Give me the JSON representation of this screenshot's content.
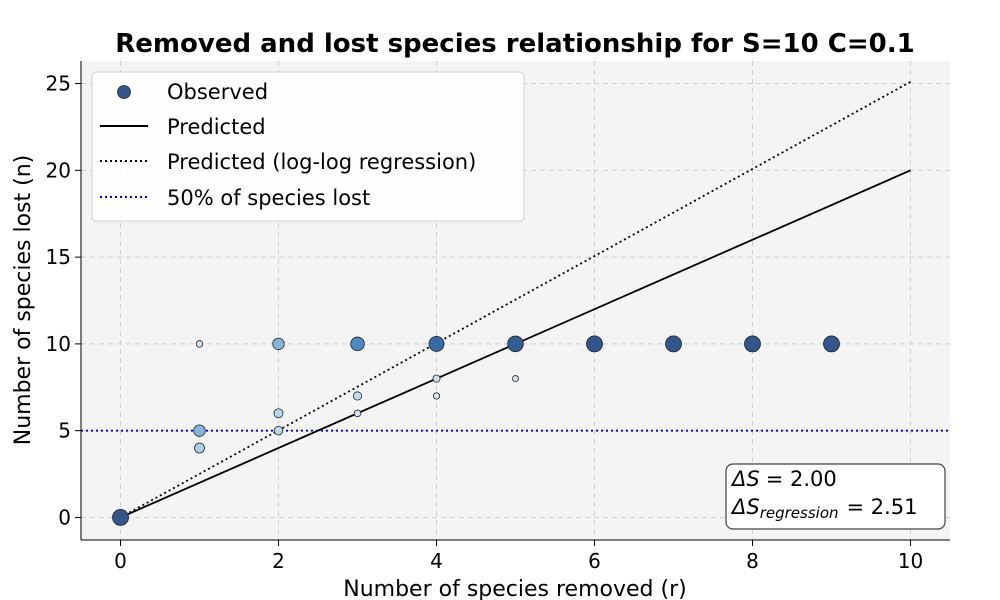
{
  "chart_data": {
    "type": "scatter",
    "title": "Removed and lost species relationship for S=10 C=0.1",
    "xlabel": "Number of species removed (r)",
    "ylabel": "Number of species lost (n)",
    "xlim": [
      -0.5,
      10.5
    ],
    "ylim": [
      -1.3,
      26.3
    ],
    "xticks": [
      0,
      2,
      4,
      6,
      8,
      10
    ],
    "yticks": [
      0,
      5,
      10,
      15,
      20,
      25
    ],
    "grid": true,
    "legend_position": "top-left",
    "legend": {
      "observed": "Observed",
      "predicted": "Predicted",
      "predicted_log": "Predicted (log-log regression)",
      "half_lost": "50% of species lost"
    },
    "annotation": {
      "delta_s_symbol": "ΔS",
      "delta_s_value": "= 2.00",
      "delta_s_reg_sub": "regression",
      "delta_s_reg_value": "= 2.51"
    },
    "series": [
      {
        "name": "Observed",
        "points": [
          {
            "x": 0,
            "y": 0,
            "weight": 1.0
          },
          {
            "x": 1,
            "y": 10,
            "weight": 0.05
          },
          {
            "x": 1,
            "y": 5,
            "weight": 0.4
          },
          {
            "x": 1,
            "y": 4,
            "weight": 0.25
          },
          {
            "x": 2,
            "y": 10,
            "weight": 0.4
          },
          {
            "x": 2,
            "y": 6,
            "weight": 0.18
          },
          {
            "x": 2,
            "y": 5,
            "weight": 0.15
          },
          {
            "x": 3,
            "y": 10,
            "weight": 0.65
          },
          {
            "x": 3,
            "y": 7,
            "weight": 0.13
          },
          {
            "x": 3,
            "y": 6,
            "weight": 0.05
          },
          {
            "x": 4,
            "y": 10,
            "weight": 0.85
          },
          {
            "x": 4,
            "y": 8,
            "weight": 0.07
          },
          {
            "x": 4,
            "y": 7,
            "weight": 0.04
          },
          {
            "x": 5,
            "y": 10,
            "weight": 0.95
          },
          {
            "x": 5,
            "y": 8,
            "weight": 0.03
          },
          {
            "x": 6,
            "y": 10,
            "weight": 1.0
          },
          {
            "x": 7,
            "y": 10,
            "weight": 1.0
          },
          {
            "x": 8,
            "y": 10,
            "weight": 1.0
          },
          {
            "x": 9,
            "y": 10,
            "weight": 1.0
          }
        ]
      },
      {
        "name": "Predicted",
        "x": [
          0,
          10
        ],
        "y": [
          0,
          20
        ]
      },
      {
        "name": "Predicted (log-log regression)",
        "x": [
          0,
          10
        ],
        "y": [
          0,
          25.1
        ]
      },
      {
        "name": "50% of species lost",
        "y_constant": 5
      }
    ],
    "colors": {
      "observed_marker": "#34558b",
      "predicted_line": "#000000",
      "log_line": "#000000",
      "half_line": "#0000cc",
      "plot_background": "#f4f4f4",
      "grid": "#cfcfcf"
    }
  }
}
